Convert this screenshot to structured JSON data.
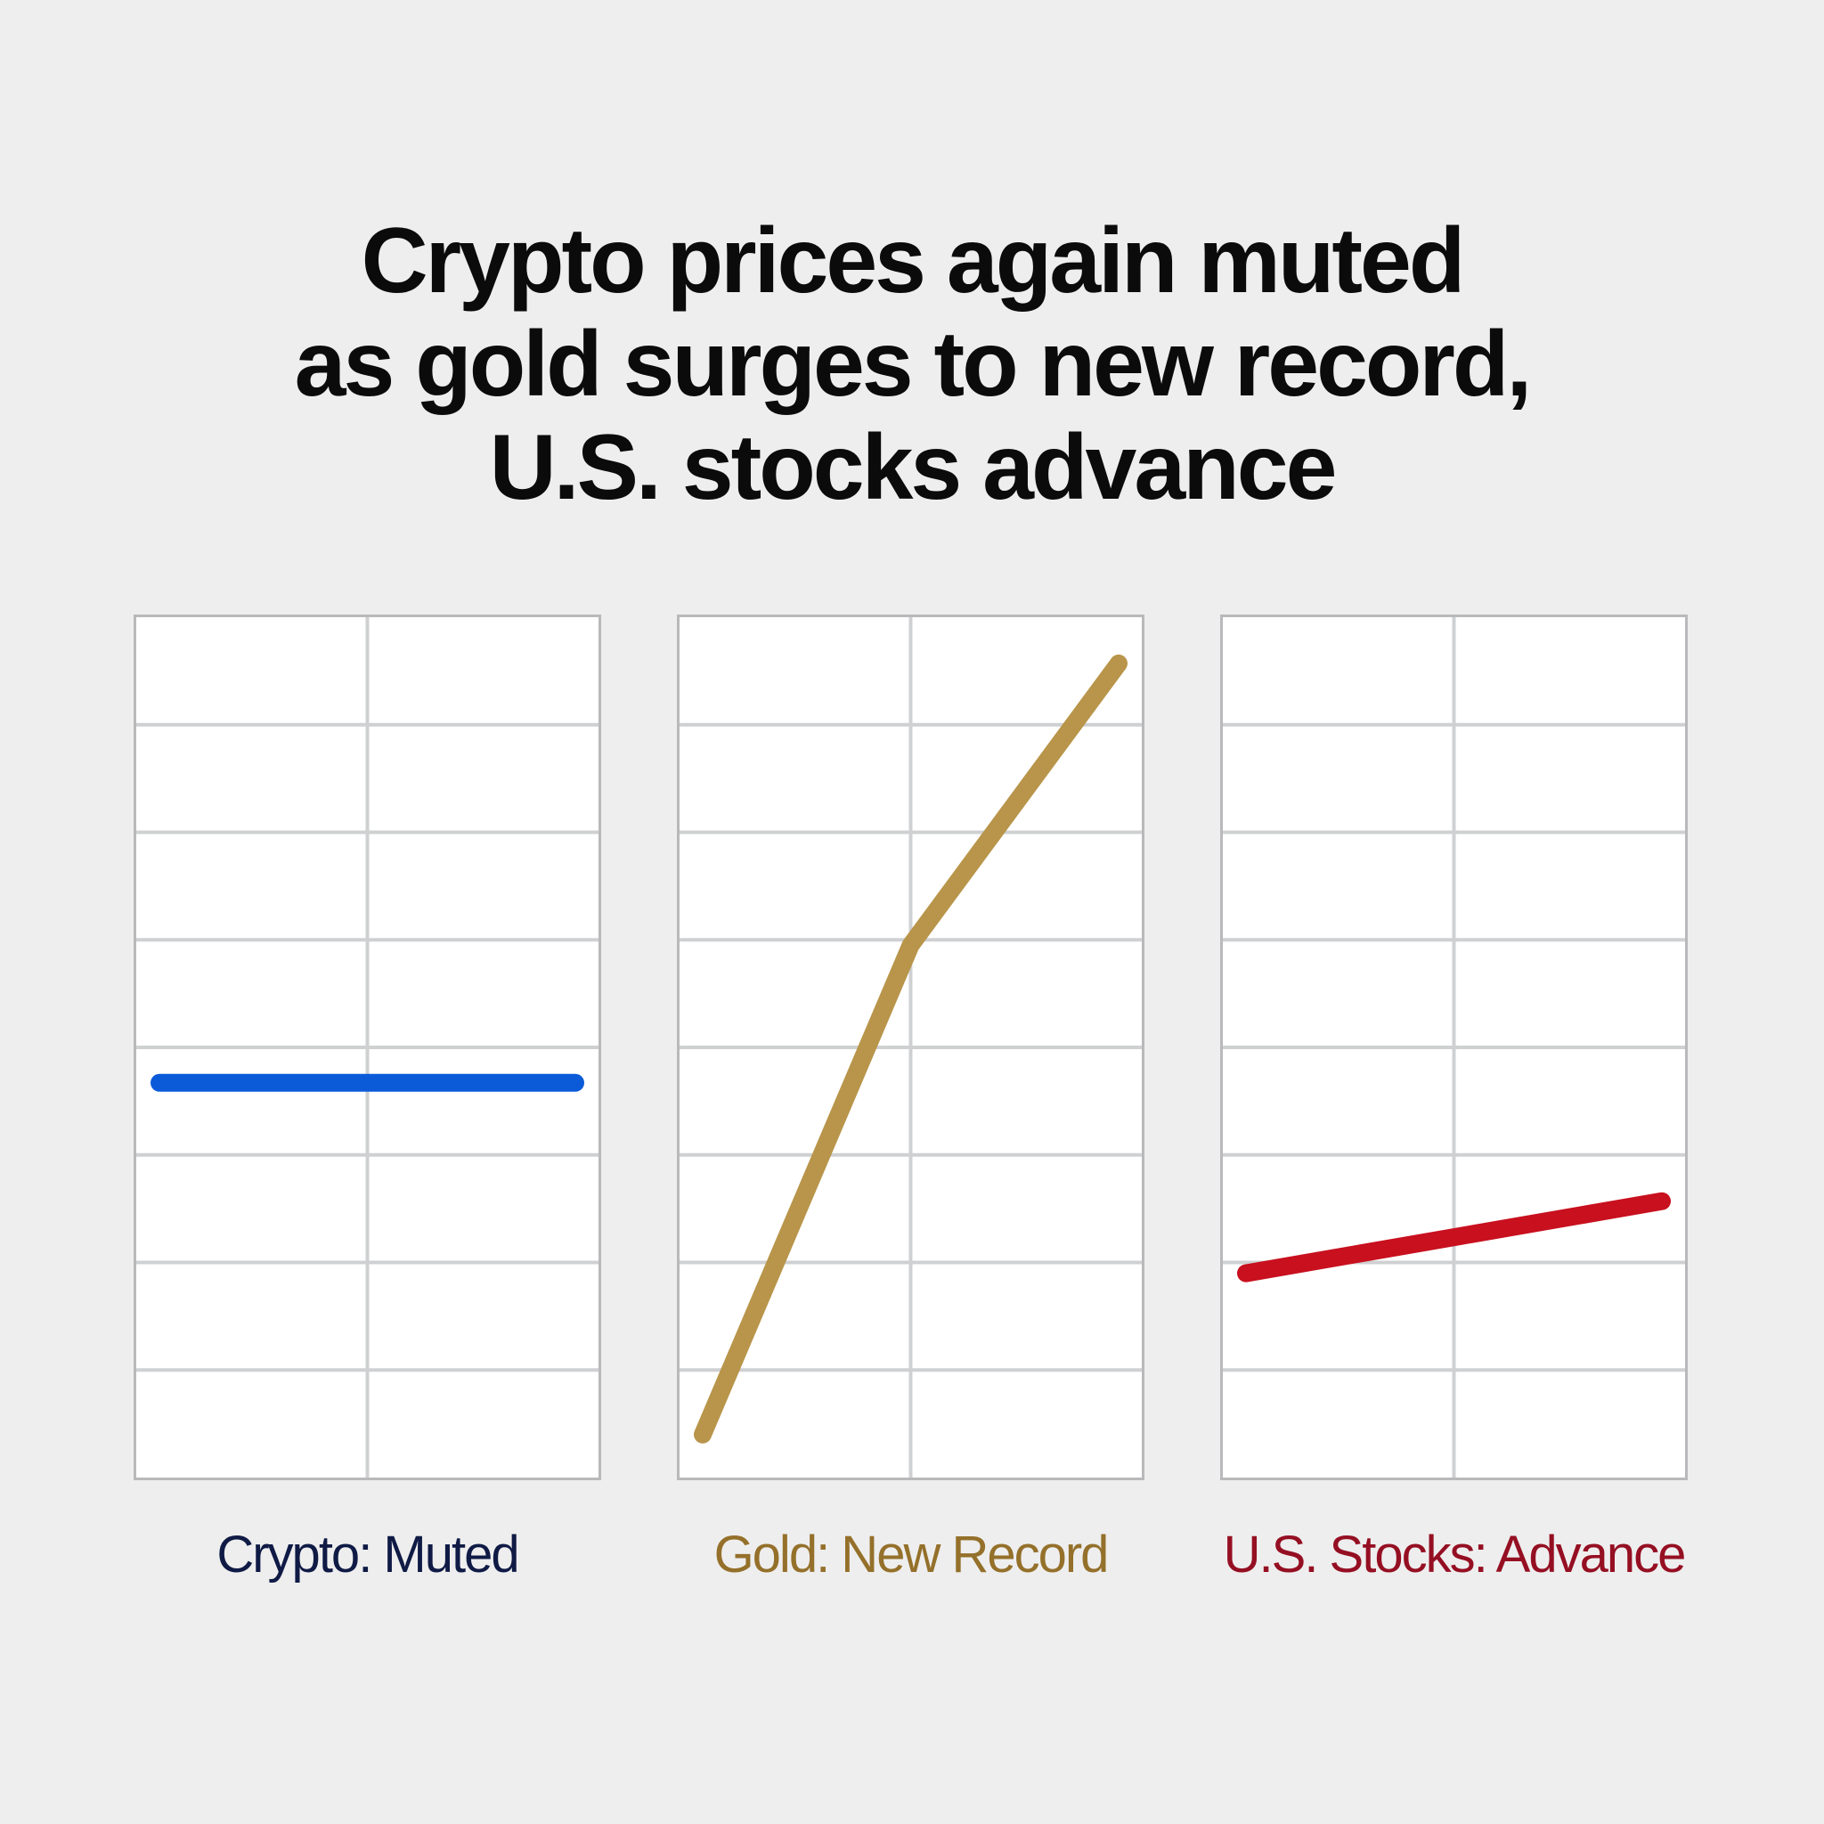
{
  "title": {
    "lines": [
      "Crypto prices again muted",
      "as gold surges to new record,",
      "U.S. stocks advance"
    ]
  },
  "panels": [
    {
      "label": "Crypto: Muted",
      "color": "#0b5bd9",
      "label_color": "#0f1a45"
    },
    {
      "label": "Gold: New Record",
      "color": "#b8954a",
      "label_color": "#94702a"
    },
    {
      "label": "U.S. Stocks: Advance",
      "color": "#c8101e",
      "label_color": "#950f22"
    }
  ],
  "chart_data": {
    "type": "line",
    "title": "Crypto prices again muted as gold surges to new record, U.S. stocks advance",
    "layout": "three small-multiple panels, 2 columns x 8 rows grid each, no axis ticks or numeric labels",
    "grid": true,
    "ylim": [
      0,
      8
    ],
    "xlim": [
      0,
      2
    ],
    "series": [
      {
        "name": "Crypto: Muted",
        "color": "#0b5bd9",
        "x": [
          0.1,
          1.9
        ],
        "y": [
          3.67,
          3.67
        ]
      },
      {
        "name": "Gold: New Record",
        "color": "#b8954a",
        "x": [
          0.1,
          1.0,
          1.9
        ],
        "y": [
          0.4,
          4.95,
          7.57
        ]
      },
      {
        "name": "U.S. Stocks: Advance",
        "color": "#c8101e",
        "x": [
          0.1,
          1.9
        ],
        "y": [
          1.9,
          2.57
        ]
      }
    ],
    "xlabel": "",
    "ylabel": ""
  }
}
